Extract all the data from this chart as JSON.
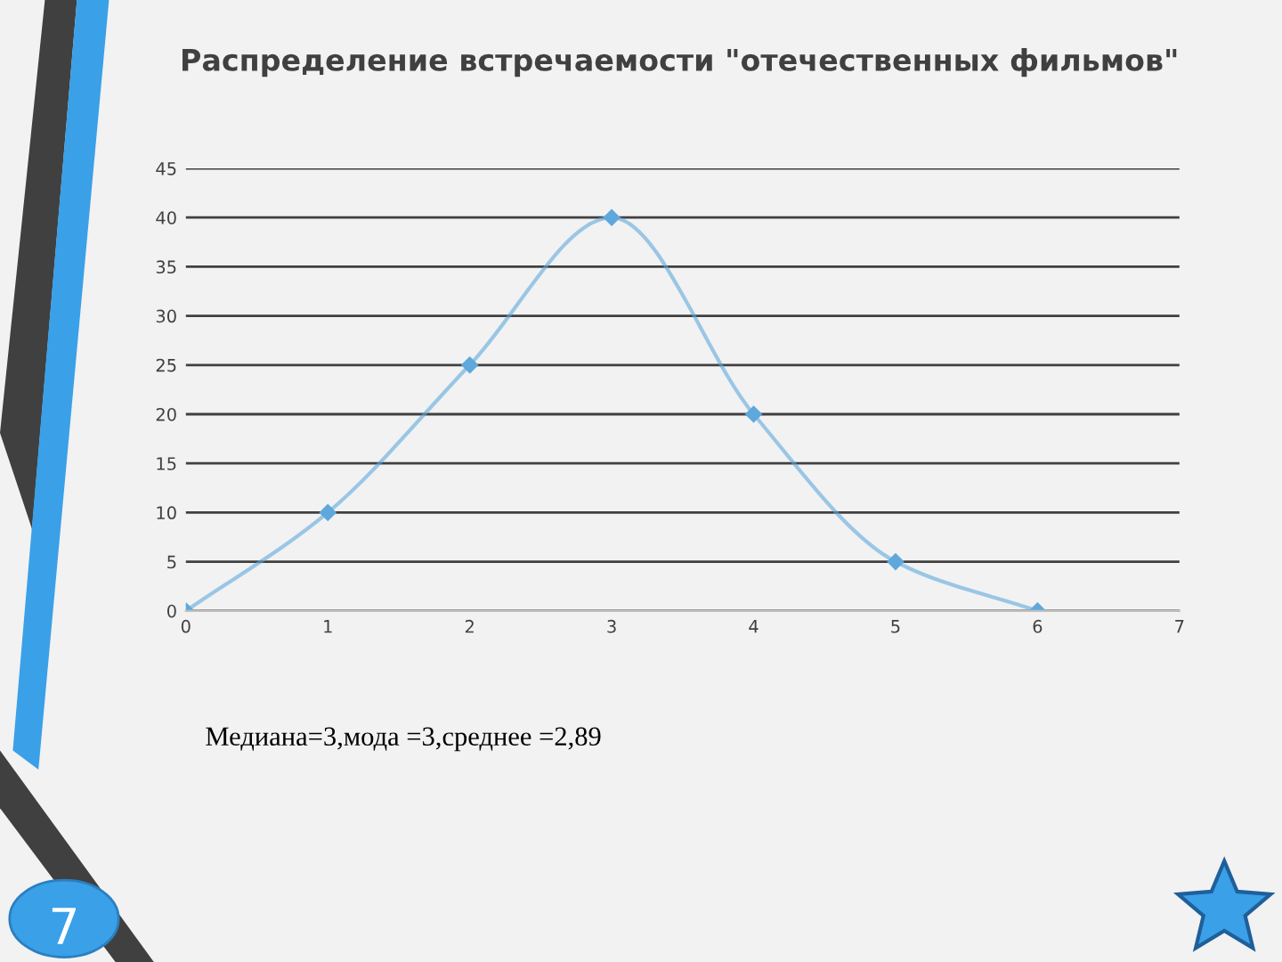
{
  "chart_data": {
    "type": "line",
    "title": "Распределение встречаемости \"отечественных фильмов\"",
    "x": [
      0,
      1,
      2,
      3,
      4,
      5,
      6
    ],
    "series": [
      {
        "color": "#5fa8dc",
        "values": [
          0,
          10,
          25,
          40,
          20,
          5,
          0
        ]
      }
    ],
    "xlim": [
      0,
      7
    ],
    "xticks": [
      0,
      1,
      2,
      3,
      4,
      5,
      6,
      7
    ],
    "ylim": [
      0,
      45
    ],
    "yticks": [
      0,
      5,
      10,
      15,
      20,
      25,
      30,
      35,
      40,
      45
    ],
    "grid": "y",
    "marker": "diamond",
    "line_style": "solid",
    "annotations": [
      "Медиана=3,мода =3,среднее =2,89",
      "7"
    ]
  }
}
